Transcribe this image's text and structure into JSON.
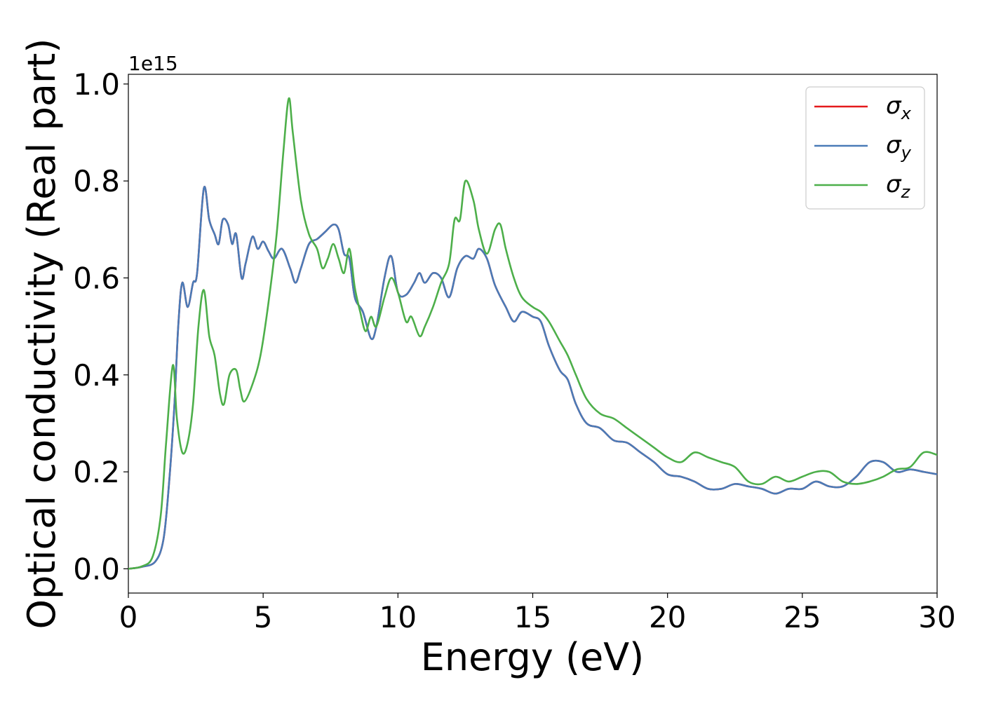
{
  "chart_data": {
    "type": "line",
    "title": "",
    "xlabel": "Energy (eV)",
    "ylabel": "Optical conductivity (Real part)",
    "y_offset_label": "1e15",
    "xlim": [
      0,
      30
    ],
    "ylim": [
      -0.05,
      1.02
    ],
    "xticks": [
      0,
      5,
      10,
      15,
      20,
      25,
      30
    ],
    "xtick_labels": [
      "0",
      "5",
      "10",
      "15",
      "20",
      "25",
      "30"
    ],
    "yticks": [
      0.0,
      0.2,
      0.4,
      0.6,
      0.8,
      1.0
    ],
    "ytick_labels": [
      "0.0",
      "0.2",
      "0.4",
      "0.6",
      "0.8",
      "1.0"
    ],
    "grid": false,
    "legend": {
      "position": "top-right"
    },
    "series": [
      {
        "name": "σx",
        "legend_base": "σ",
        "legend_sub": "x",
        "color": "#e41a1c",
        "x": [
          0,
          0.5,
          1.0,
          1.3,
          1.5,
          1.7,
          1.85,
          2.0,
          2.2,
          2.4,
          2.55,
          2.8,
          3.0,
          3.2,
          3.35,
          3.5,
          3.7,
          3.85,
          4.0,
          4.2,
          4.35,
          4.6,
          4.8,
          5.0,
          5.2,
          5.4,
          5.7,
          6.0,
          6.2,
          6.4,
          6.7,
          7.0,
          7.3,
          7.6,
          7.8,
          8.0,
          8.2,
          8.4,
          8.7,
          9.0,
          9.2,
          9.5,
          9.75,
          10.0,
          10.3,
          10.6,
          10.8,
          11.0,
          11.3,
          11.6,
          11.9,
          12.2,
          12.5,
          12.8,
          13.0,
          13.3,
          13.6,
          14.0,
          14.3,
          14.6,
          15.0,
          15.3,
          15.6,
          16.0,
          16.3,
          16.6,
          17.0,
          17.5,
          18.0,
          18.5,
          19.0,
          19.5,
          20.0,
          20.5,
          21.0,
          21.5,
          22.0,
          22.5,
          23.0,
          23.5,
          24.0,
          24.5,
          25.0,
          25.5,
          26.0,
          26.5,
          27.0,
          27.5,
          28.0,
          28.5,
          29.0,
          29.5,
          30.0
        ],
        "y": [
          0.0,
          0.004,
          0.015,
          0.06,
          0.17,
          0.33,
          0.5,
          0.59,
          0.54,
          0.59,
          0.61,
          0.785,
          0.72,
          0.69,
          0.67,
          0.72,
          0.71,
          0.67,
          0.69,
          0.6,
          0.63,
          0.685,
          0.66,
          0.675,
          0.655,
          0.64,
          0.66,
          0.62,
          0.59,
          0.62,
          0.67,
          0.68,
          0.695,
          0.71,
          0.7,
          0.65,
          0.64,
          0.56,
          0.53,
          0.475,
          0.5,
          0.6,
          0.645,
          0.57,
          0.565,
          0.59,
          0.61,
          0.59,
          0.61,
          0.6,
          0.56,
          0.62,
          0.645,
          0.64,
          0.66,
          0.64,
          0.585,
          0.54,
          0.51,
          0.53,
          0.52,
          0.51,
          0.46,
          0.41,
          0.39,
          0.34,
          0.3,
          0.29,
          0.265,
          0.26,
          0.24,
          0.22,
          0.195,
          0.19,
          0.18,
          0.165,
          0.165,
          0.175,
          0.17,
          0.165,
          0.155,
          0.165,
          0.165,
          0.18,
          0.17,
          0.17,
          0.19,
          0.22,
          0.22,
          0.2,
          0.205,
          0.2,
          0.195
        ]
      },
      {
        "name": "σy",
        "legend_base": "σ",
        "legend_sub": "y",
        "color": "#4a7bb7",
        "x": [
          0,
          0.5,
          1.0,
          1.3,
          1.5,
          1.7,
          1.85,
          2.0,
          2.2,
          2.4,
          2.55,
          2.8,
          3.0,
          3.2,
          3.35,
          3.5,
          3.7,
          3.85,
          4.0,
          4.2,
          4.35,
          4.6,
          4.8,
          5.0,
          5.2,
          5.4,
          5.7,
          6.0,
          6.2,
          6.4,
          6.7,
          7.0,
          7.3,
          7.6,
          7.8,
          8.0,
          8.2,
          8.4,
          8.7,
          9.0,
          9.2,
          9.5,
          9.75,
          10.0,
          10.3,
          10.6,
          10.8,
          11.0,
          11.3,
          11.6,
          11.9,
          12.2,
          12.5,
          12.8,
          13.0,
          13.3,
          13.6,
          14.0,
          14.3,
          14.6,
          15.0,
          15.3,
          15.6,
          16.0,
          16.3,
          16.6,
          17.0,
          17.5,
          18.0,
          18.5,
          19.0,
          19.5,
          20.0,
          20.5,
          21.0,
          21.5,
          22.0,
          22.5,
          23.0,
          23.5,
          24.0,
          24.5,
          25.0,
          25.5,
          26.0,
          26.5,
          27.0,
          27.5,
          28.0,
          28.5,
          29.0,
          29.5,
          30.0
        ],
        "y": [
          0.0,
          0.004,
          0.015,
          0.06,
          0.17,
          0.33,
          0.5,
          0.59,
          0.54,
          0.59,
          0.61,
          0.785,
          0.72,
          0.69,
          0.67,
          0.72,
          0.71,
          0.67,
          0.69,
          0.6,
          0.63,
          0.685,
          0.66,
          0.675,
          0.655,
          0.64,
          0.66,
          0.62,
          0.59,
          0.62,
          0.67,
          0.68,
          0.695,
          0.71,
          0.7,
          0.65,
          0.64,
          0.56,
          0.53,
          0.475,
          0.5,
          0.6,
          0.645,
          0.57,
          0.565,
          0.59,
          0.61,
          0.59,
          0.61,
          0.6,
          0.56,
          0.62,
          0.645,
          0.64,
          0.66,
          0.64,
          0.585,
          0.54,
          0.51,
          0.53,
          0.52,
          0.51,
          0.46,
          0.41,
          0.39,
          0.34,
          0.3,
          0.29,
          0.265,
          0.26,
          0.24,
          0.22,
          0.195,
          0.19,
          0.18,
          0.165,
          0.165,
          0.175,
          0.17,
          0.165,
          0.155,
          0.165,
          0.165,
          0.18,
          0.17,
          0.17,
          0.19,
          0.22,
          0.22,
          0.2,
          0.205,
          0.2,
          0.195
        ]
      },
      {
        "name": "σz",
        "legend_base": "σ",
        "legend_sub": "z",
        "color": "#4daf4a",
        "x": [
          0,
          0.5,
          0.9,
          1.2,
          1.4,
          1.65,
          1.8,
          2.0,
          2.2,
          2.4,
          2.6,
          2.8,
          3.0,
          3.2,
          3.4,
          3.55,
          3.75,
          4.0,
          4.15,
          4.3,
          4.6,
          4.9,
          5.2,
          5.5,
          5.75,
          5.95,
          6.1,
          6.4,
          6.7,
          7.0,
          7.2,
          7.4,
          7.6,
          7.8,
          8.0,
          8.2,
          8.4,
          8.6,
          8.8,
          9.0,
          9.2,
          9.5,
          9.75,
          10.0,
          10.3,
          10.5,
          10.8,
          11.0,
          11.3,
          11.6,
          11.9,
          12.1,
          12.3,
          12.5,
          12.8,
          13.0,
          13.3,
          13.6,
          13.8,
          14.0,
          14.3,
          14.6,
          15.0,
          15.3,
          15.6,
          16.0,
          16.3,
          16.6,
          17.0,
          17.5,
          18.0,
          18.5,
          19.0,
          19.5,
          20.0,
          20.5,
          21.0,
          21.5,
          22.0,
          22.5,
          23.0,
          23.5,
          24.0,
          24.5,
          25.0,
          25.5,
          26.0,
          26.5,
          27.0,
          27.5,
          28.0,
          28.5,
          29.0,
          29.5,
          30.0
        ],
        "y": [
          0.0,
          0.005,
          0.025,
          0.11,
          0.26,
          0.42,
          0.31,
          0.24,
          0.26,
          0.34,
          0.5,
          0.575,
          0.48,
          0.44,
          0.36,
          0.34,
          0.4,
          0.41,
          0.37,
          0.345,
          0.38,
          0.44,
          0.55,
          0.69,
          0.86,
          0.97,
          0.9,
          0.76,
          0.69,
          0.66,
          0.62,
          0.64,
          0.67,
          0.64,
          0.61,
          0.66,
          0.58,
          0.53,
          0.49,
          0.52,
          0.5,
          0.56,
          0.6,
          0.57,
          0.51,
          0.52,
          0.48,
          0.5,
          0.54,
          0.59,
          0.63,
          0.72,
          0.72,
          0.8,
          0.76,
          0.7,
          0.65,
          0.7,
          0.71,
          0.66,
          0.6,
          0.56,
          0.54,
          0.53,
          0.51,
          0.47,
          0.44,
          0.4,
          0.35,
          0.32,
          0.31,
          0.29,
          0.27,
          0.25,
          0.23,
          0.22,
          0.24,
          0.23,
          0.22,
          0.21,
          0.18,
          0.175,
          0.19,
          0.18,
          0.19,
          0.2,
          0.2,
          0.18,
          0.175,
          0.18,
          0.19,
          0.205,
          0.21,
          0.24,
          0.235
        ]
      }
    ]
  }
}
